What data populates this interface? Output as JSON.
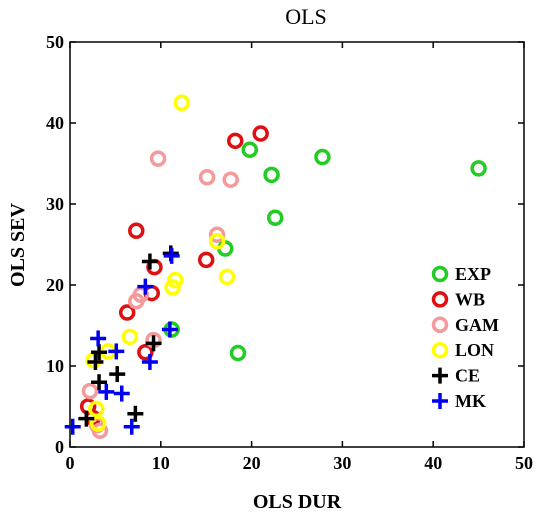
{
  "chart_data": {
    "type": "scatter",
    "title": "OLS",
    "xlabel": "OLS DUR",
    "ylabel": "OLS SEV",
    "xlim": [
      0,
      50
    ],
    "ylim": [
      0,
      50
    ],
    "xticks": [
      "0",
      "10",
      "20",
      "30",
      "40",
      "50"
    ],
    "yticks": [
      "0",
      "10",
      "20",
      "30",
      "40",
      "50"
    ],
    "grid": false,
    "legend_position": "bottom-right",
    "series": [
      {
        "name": "EXP",
        "color": "#22cc22",
        "marker": "circle",
        "x": [
          19.8,
          22.2,
          27.8,
          22.6,
          17.1,
          11.2,
          18.5,
          45.0
        ],
        "y": [
          36.7,
          33.6,
          35.8,
          28.3,
          24.5,
          14.5,
          11.6,
          34.4
        ]
      },
      {
        "name": "WB",
        "color": "#dd1111",
        "marker": "circle",
        "x": [
          18.2,
          21.0,
          7.3,
          15.0,
          9.3,
          6.3,
          9.0,
          8.3,
          2.0,
          2.5
        ],
        "y": [
          37.8,
          38.7,
          26.7,
          23.1,
          22.2,
          16.6,
          19.0,
          11.7,
          5.0,
          3.6
        ]
      },
      {
        "name": "GAM",
        "color": "#f49a9a",
        "marker": "circle",
        "x": [
          9.7,
          15.1,
          17.7,
          16.2,
          7.8,
          7.3,
          9.2,
          2.2,
          3.3,
          3.0
        ],
        "y": [
          35.6,
          33.3,
          33.0,
          26.2,
          18.8,
          18.0,
          13.2,
          6.9,
          2.0,
          2.7
        ]
      },
      {
        "name": "LON",
        "color": "#ffff00",
        "marker": "circle",
        "x": [
          12.3,
          16.2,
          17.3,
          11.6,
          11.3,
          6.6,
          4.2,
          2.6,
          2.9,
          3.1
        ],
        "y": [
          42.5,
          25.4,
          21.0,
          20.6,
          19.7,
          13.6,
          11.8,
          10.7,
          4.7,
          2.9
        ]
      },
      {
        "name": "CE",
        "color": "#000000",
        "marker": "plus",
        "x": [
          8.8,
          11.1,
          9.2,
          3.2,
          2.8,
          3.2,
          5.2,
          7.2,
          1.8
        ],
        "y": [
          22.9,
          23.9,
          12.8,
          11.7,
          10.5,
          8.0,
          9.0,
          4.1,
          3.5
        ]
      },
      {
        "name": "MK",
        "color": "#0000ee",
        "marker": "plus",
        "x": [
          11.2,
          8.3,
          11.0,
          3.1,
          5.1,
          8.8,
          4.0,
          5.7,
          0.3,
          6.8
        ],
        "y": [
          23.6,
          19.8,
          14.5,
          13.4,
          11.8,
          10.5,
          6.8,
          6.6,
          2.5,
          2.5
        ]
      }
    ]
  }
}
